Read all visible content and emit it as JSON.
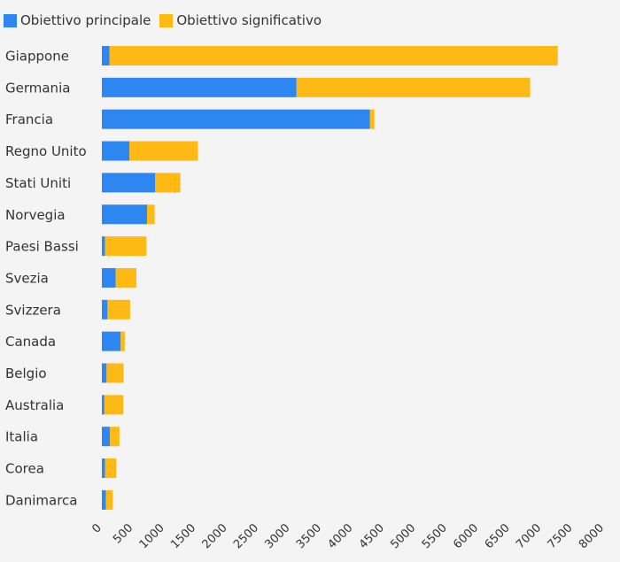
{
  "chart_data": {
    "type": "bar",
    "orientation": "horizontal",
    "stacked": true,
    "categories": [
      "Giappone",
      "Germania",
      "Francia",
      "Regno Unito",
      "Stati Uniti",
      "Norvegia",
      "Paesi Bassi",
      "Svezia",
      "Svizzera",
      "Canada",
      "Belgio",
      "Australia",
      "Italia",
      "Corea",
      "Danimarca"
    ],
    "series": [
      {
        "name": "Obiettivo principale",
        "color": "#2e86f0",
        "values": [
          120,
          3100,
          4270,
          440,
          850,
          720,
          50,
          220,
          90,
          300,
          75,
          40,
          130,
          50,
          65
        ]
      },
      {
        "name": "Obiettivo significativo",
        "color": "#ffb914",
        "values": [
          7140,
          3720,
          70,
          1090,
          400,
          120,
          660,
          330,
          360,
          65,
          270,
          300,
          150,
          180,
          110
        ]
      }
    ],
    "xlim": [
      0,
      8000
    ],
    "xticks": [
      0,
      500,
      1000,
      1500,
      2000,
      2500,
      3000,
      3500,
      4000,
      4500,
      5000,
      5500,
      6000,
      6500,
      7000,
      7500,
      8000
    ],
    "legend_position": "top-left",
    "grid": false
  }
}
